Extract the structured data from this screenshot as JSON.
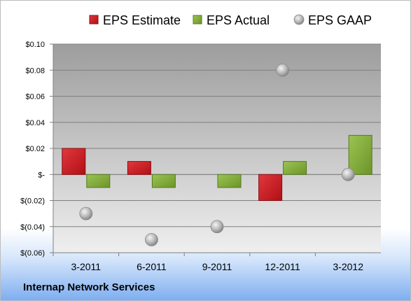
{
  "chart_data": {
    "type": "bar",
    "categories": [
      "3-2011",
      "6-2011",
      "9-2011",
      "12-2011",
      "3-2012"
    ],
    "series": [
      {
        "name": "EPS Estimate",
        "kind": "bar",
        "color": "#c0141b",
        "values": [
          0.02,
          0.01,
          null,
          -0.02,
          null
        ]
      },
      {
        "name": "EPS Actual",
        "kind": "bar",
        "color": "#77a12d",
        "values": [
          -0.01,
          -0.01,
          -0.01,
          0.01,
          0.03
        ]
      },
      {
        "name": "EPS GAAP",
        "kind": "marker",
        "color": "#a8a8a8",
        "values": [
          -0.03,
          -0.05,
          -0.04,
          0.08,
          0.0
        ]
      }
    ],
    "y_ticks": [
      0.1,
      0.08,
      0.06,
      0.04,
      0.02,
      0,
      -0.02,
      -0.04,
      -0.06
    ],
    "y_tick_labels": [
      "$0.10",
      "$0.08",
      "$0.06",
      "$0.04",
      "$0.02",
      "$-",
      "$(0.02)",
      "$(0.04)",
      "$(0.06)"
    ],
    "ylim": [
      -0.06,
      0.1
    ],
    "legend_position": "top",
    "grid": true
  },
  "company_name": "Internap Network Services"
}
